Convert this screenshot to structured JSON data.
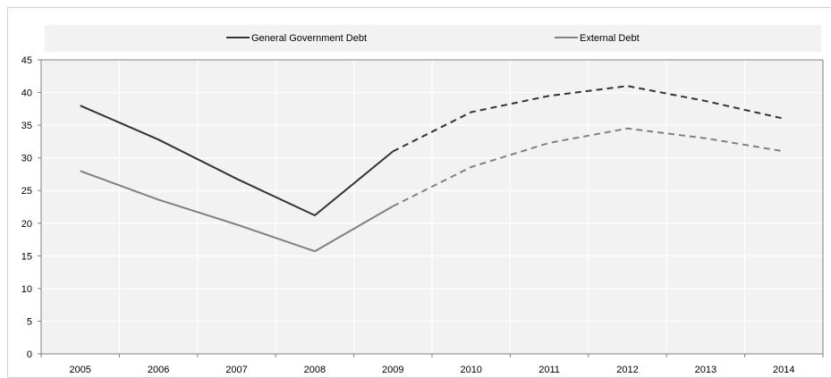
{
  "chart_data": {
    "type": "line",
    "categories": [
      "2005",
      "2006",
      "2007",
      "2008",
      "2009",
      "2010",
      "2011",
      "2012",
      "2013",
      "2014"
    ],
    "ylim": [
      0,
      45
    ],
    "yticks": [
      0,
      5,
      10,
      15,
      20,
      25,
      30,
      35,
      40,
      45
    ],
    "grid": true,
    "legend_position": "top",
    "dashed_from_category": "2009",
    "series": [
      {
        "name": "General Government Debt",
        "color": "#333333",
        "values": [
          38,
          32.8,
          26.8,
          21.2,
          31,
          37,
          39.5,
          41,
          38.7,
          36
        ]
      },
      {
        "name": "External Debt",
        "color": "#808080",
        "values": [
          28,
          23.6,
          19.8,
          15.7,
          22.6,
          28.6,
          32.3,
          34.5,
          33,
          31
        ]
      }
    ]
  }
}
